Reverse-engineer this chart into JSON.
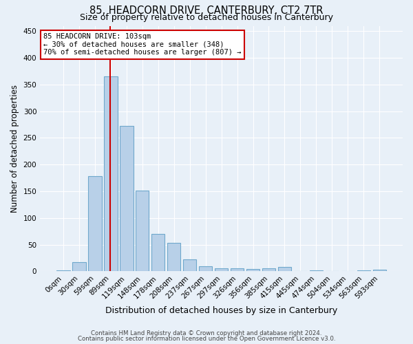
{
  "title": "85, HEADCORN DRIVE, CANTERBURY, CT2 7TR",
  "subtitle": "Size of property relative to detached houses in Canterbury",
  "xlabel": "Distribution of detached houses by size in Canterbury",
  "ylabel": "Number of detached properties",
  "bar_labels": [
    "0sqm",
    "30sqm",
    "59sqm",
    "89sqm",
    "119sqm",
    "148sqm",
    "178sqm",
    "208sqm",
    "237sqm",
    "267sqm",
    "297sqm",
    "326sqm",
    "356sqm",
    "385sqm",
    "415sqm",
    "445sqm",
    "474sqm",
    "504sqm",
    "534sqm",
    "563sqm",
    "593sqm"
  ],
  "bar_values": [
    2,
    17,
    178,
    365,
    272,
    151,
    70,
    54,
    23,
    9,
    6,
    6,
    5,
    6,
    8,
    0,
    2,
    0,
    0,
    2,
    3
  ],
  "bar_color": "#b8d0e8",
  "bar_edge_color": "#6fa8cc",
  "bg_color": "#e8f0f8",
  "grid_color": "#ffffff",
  "property_line_color": "#cc0000",
  "annotation_text": "85 HEADCORN DRIVE: 103sqm\n← 30% of detached houses are smaller (348)\n70% of semi-detached houses are larger (807) →",
  "annotation_box_color": "#ffffff",
  "annotation_box_edge_color": "#cc0000",
  "footer_line1": "Contains HM Land Registry data © Crown copyright and database right 2024.",
  "footer_line2": "Contains public sector information licensed under the Open Government Licence v3.0.",
  "ylim": [
    0,
    460
  ],
  "bin_edges": [
    0,
    30,
    59,
    89,
    119,
    148,
    178,
    208,
    237,
    267,
    297,
    326,
    356,
    385,
    415,
    445,
    474,
    504,
    534,
    563,
    593
  ],
  "property_sqm": 103
}
